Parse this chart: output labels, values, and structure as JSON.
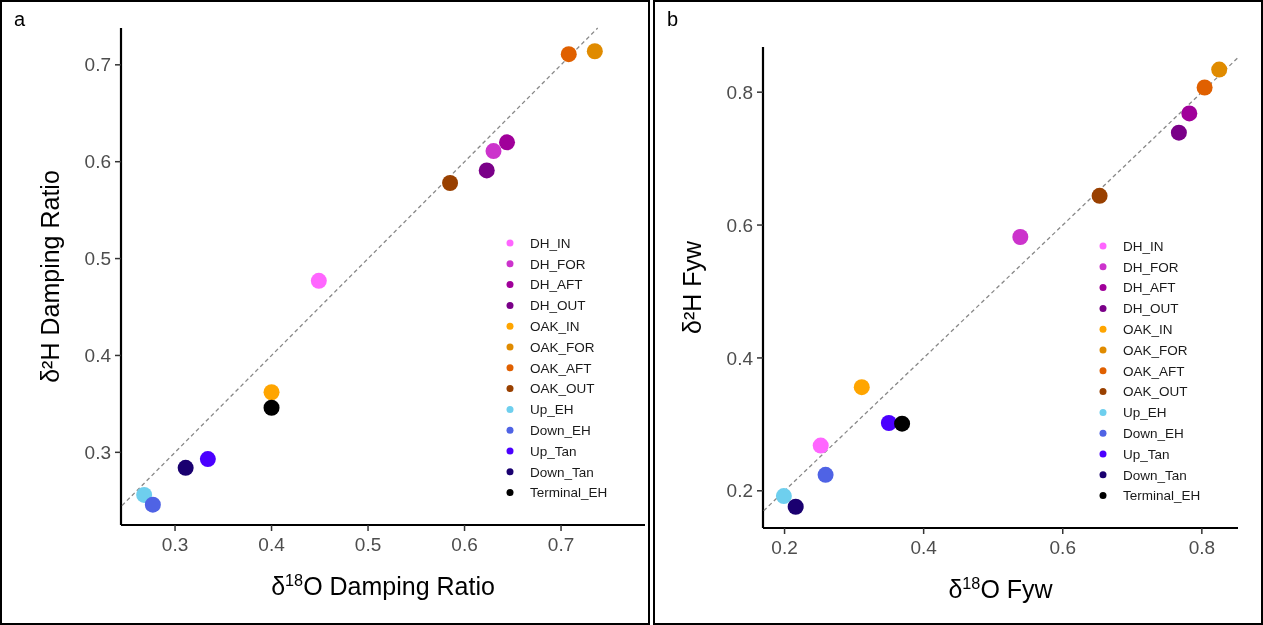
{
  "chart_data": [
    {
      "type": "scatter",
      "title": "a",
      "xlabel": "δ$^{18}$O Damping Ratio",
      "ylabel": "δ²H Damping Ratio",
      "xlim": [
        0.244,
        0.787
      ],
      "ylim": [
        0.225,
        0.738
      ],
      "xticks": [
        0.3,
        0.4,
        0.5,
        0.6,
        0.7
      ],
      "yticks": [
        0.3,
        0.4,
        0.5,
        0.6,
        0.7
      ],
      "grid": false,
      "legend": "bottom right",
      "marker": "circle",
      "series": [
        {
          "type": "line",
          "color": "#888888",
          "line_style": "dashed",
          "marker": "none",
          "x": [
            0.245,
            0.738
          ],
          "values": [
            0.245,
            0.738
          ]
        },
        {
          "name": "DH_IN",
          "color": "#ff66ff",
          "x": [
            0.449
          ],
          "values": [
            0.477
          ]
        },
        {
          "name": "DH_FOR",
          "color": "#cc33cc",
          "x": [
            0.63
          ],
          "values": [
            0.611
          ]
        },
        {
          "name": "DH_AFT",
          "color": "#a0009a",
          "x": [
            0.644
          ],
          "values": [
            0.62
          ]
        },
        {
          "name": "DH_OUT",
          "color": "#7a0088",
          "x": [
            0.623
          ],
          "values": [
            0.591
          ]
        },
        {
          "name": "OAK_IN",
          "color": "#ffa500",
          "x": [
            0.4
          ],
          "values": [
            0.362
          ]
        },
        {
          "name": "OAK_FOR",
          "color": "#e08b00",
          "x": [
            0.735
          ],
          "values": [
            0.714
          ]
        },
        {
          "name": "OAK_AFT",
          "color": "#e06000",
          "x": [
            0.708
          ],
          "values": [
            0.711
          ]
        },
        {
          "name": "OAK_OUT",
          "color": "#994000",
          "x": [
            0.585
          ],
          "values": [
            0.578
          ]
        },
        {
          "name": "Up_EH",
          "color": "#6ecfee",
          "x": [
            0.268
          ],
          "values": [
            0.256
          ]
        },
        {
          "name": "Down_EH",
          "color": "#4f63e5",
          "x": [
            0.277
          ],
          "values": [
            0.246
          ]
        },
        {
          "name": "Up_Tan",
          "color": "#4b00ff",
          "x": [
            0.334
          ],
          "values": [
            0.293
          ]
        },
        {
          "name": "Down_Tan",
          "color": "#1a0070",
          "x": [
            0.311
          ],
          "values": [
            0.284
          ]
        },
        {
          "name": "Terminal_EH",
          "color": "#000000",
          "x": [
            0.4
          ],
          "values": [
            0.346
          ]
        }
      ]
    },
    {
      "type": "scatter",
      "title": "b",
      "xlabel": "δ$^{18}$O Fyw",
      "ylabel": "δ²H Fyw",
      "xlim": [
        0.169,
        0.852
      ],
      "ylim": [
        0.144,
        0.868
      ],
      "xticks": [
        0.2,
        0.4,
        0.6,
        0.8
      ],
      "yticks": [
        0.2,
        0.4,
        0.6,
        0.8
      ],
      "grid": false,
      "legend": "bottom right",
      "marker": "circle",
      "series": [
        {
          "type": "line",
          "color": "#888888",
          "line_style": "dashed",
          "marker": "none",
          "x": [
            0.17,
            0.852
          ],
          "values": [
            0.17,
            0.852
          ]
        },
        {
          "name": "DH_IN",
          "color": "#ff66ff",
          "x": [
            0.252
          ],
          "values": [
            0.268
          ]
        },
        {
          "name": "DH_FOR",
          "color": "#cc33cc",
          "x": [
            0.539
          ],
          "values": [
            0.582
          ]
        },
        {
          "name": "DH_AFT",
          "color": "#a0009a",
          "x": [
            0.782
          ],
          "values": [
            0.768
          ]
        },
        {
          "name": "DH_OUT",
          "color": "#7a0088",
          "x": [
            0.767
          ],
          "values": [
            0.739
          ]
        },
        {
          "name": "OAK_IN",
          "color": "#ffa500",
          "x": [
            0.311
          ],
          "values": [
            0.356
          ]
        },
        {
          "name": "OAK_FOR",
          "color": "#e08b00",
          "x": [
            0.825
          ],
          "values": [
            0.834
          ]
        },
        {
          "name": "OAK_AFT",
          "color": "#e06000",
          "x": [
            0.804
          ],
          "values": [
            0.807
          ]
        },
        {
          "name": "OAK_OUT",
          "color": "#994000",
          "x": [
            0.653
          ],
          "values": [
            0.644
          ]
        },
        {
          "name": "Up_EH",
          "color": "#6ecfee",
          "x": [
            0.199
          ],
          "values": [
            0.192
          ]
        },
        {
          "name": "Down_EH",
          "color": "#4f63e5",
          "x": [
            0.259
          ],
          "values": [
            0.224
          ]
        },
        {
          "name": "Up_Tan",
          "color": "#4b00ff",
          "x": [
            0.35
          ],
          "values": [
            0.302
          ]
        },
        {
          "name": "Down_Tan",
          "color": "#1a0070",
          "x": [
            0.216
          ],
          "values": [
            0.176
          ]
        },
        {
          "name": "Terminal_EH",
          "color": "#000000",
          "x": [
            0.369
          ],
          "values": [
            0.301
          ]
        }
      ]
    }
  ]
}
